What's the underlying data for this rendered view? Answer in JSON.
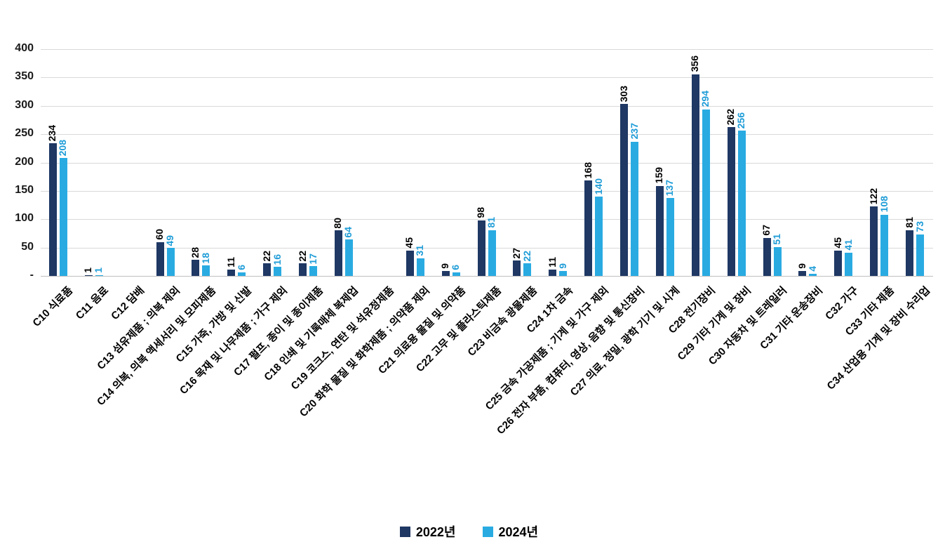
{
  "chart_data": {
    "type": "bar",
    "title": "",
    "categories": [
      "C10 식료품",
      "C11 음료",
      "C12 담배",
      "C13 섬유제품 ; 의복 제외",
      "C14 의복, 의복 액세서리 및 모피제품",
      "C15 가죽, 가방 및 신발",
      "C16 목재 및 나무제품 ; 가구 제외",
      "C17 펄프, 종이 및 종이제품",
      "C18 인쇄 및 기록매체 복제업",
      "C19 코크스, 연탄 및 석유정제품",
      "C20 화학 물질 및 화학제품 ; 의약품 제외",
      "C21 의료용 물질 및 의약품",
      "C22 고무 및 플라스틱제품",
      "C23 비금속 광물제품",
      "C24 1차 금속",
      "C25 금속 가공제품 ; 기계 및 가구 제외",
      "C26 전자 부품, 컴퓨터, 영상, 음향 및 통신장비",
      "C27 의료, 정밀, 광학 기기 및 시계",
      "C28 전기장비",
      "C29 기타 기계 및 장비",
      "C30 자동차 및 트레일러",
      "C31 기타 운송장비",
      "C32 가구",
      "C33 기타 제품",
      "C34 산업용 기계 및 장비 수리업"
    ],
    "series": [
      {
        "name": "2022년",
        "color": "#1F3864",
        "label_color": "#000000",
        "values": [
          234,
          1,
          null,
          60,
          28,
          11,
          22,
          22,
          80,
          null,
          45,
          9,
          98,
          27,
          11,
          168,
          303,
          159,
          356,
          262,
          67,
          9,
          45,
          122,
          81
        ]
      },
      {
        "name": "2024년",
        "color": "#29ABE2",
        "label_color": "#1E9CD7",
        "values": [
          208,
          1,
          null,
          49,
          18,
          6,
          16,
          17,
          64,
          null,
          31,
          6,
          81,
          22,
          9,
          140,
          237,
          137,
          294,
          256,
          51,
          4,
          41,
          108,
          73
        ]
      }
    ],
    "ylim": [
      0,
      400
    ],
    "ytick_step": 50,
    "ytick_labels": [
      "-",
      "50",
      "100",
      "150",
      "200",
      "250",
      "300",
      "350",
      "400"
    ],
    "grid": true,
    "legend_position": "bottom"
  }
}
